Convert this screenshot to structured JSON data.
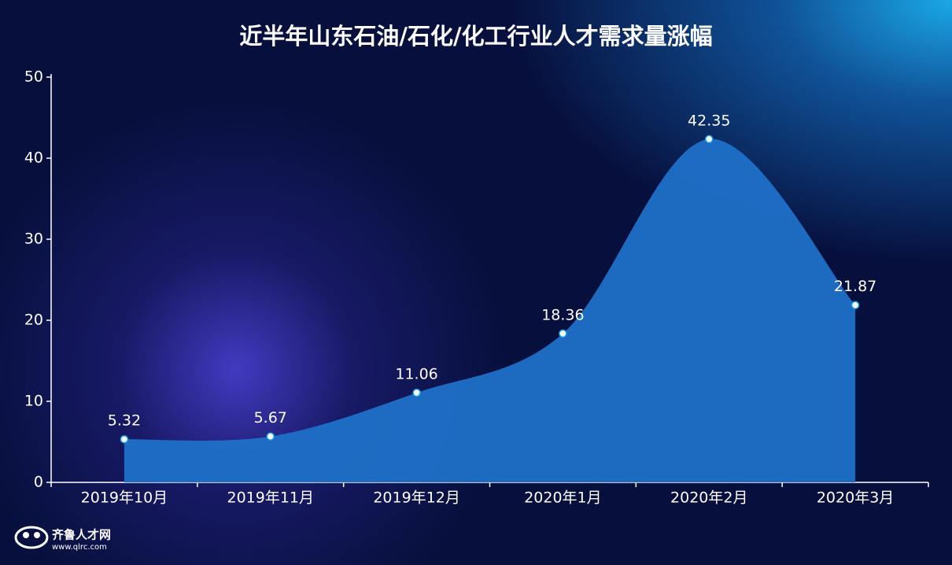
{
  "chart_data": {
    "type": "area",
    "title": "近半年山东石油/石化/化工行业人才需求量涨幅",
    "categories": [
      "2019年10月",
      "2019年11月",
      "2019年12月",
      "2020年1月",
      "2020年2月",
      "2020年3月"
    ],
    "values": [
      5.32,
      5.67,
      11.06,
      18.36,
      42.35,
      21.87
    ],
    "color": "#1f70c8",
    "ylim": [
      0,
      50
    ],
    "yticks": [
      0,
      10,
      20,
      30,
      40,
      50
    ],
    "smooth": true
  },
  "logo": {
    "name": "齐鲁人才网",
    "url": "www.qlrc.com"
  }
}
